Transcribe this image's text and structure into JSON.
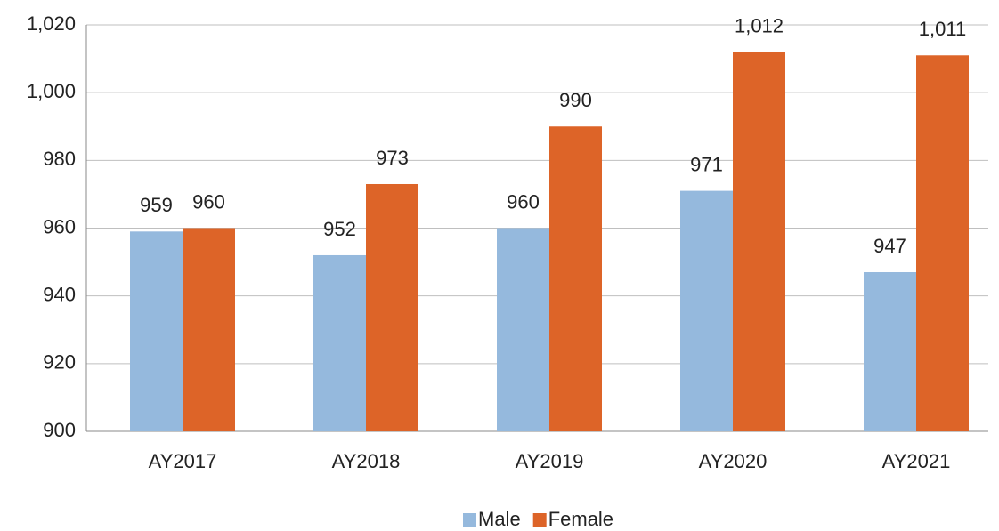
{
  "chart_data": {
    "type": "bar",
    "categories": [
      "AY2017",
      "AY2018",
      "AY2019",
      "AY2020",
      "AY2021"
    ],
    "series": [
      {
        "name": "Male",
        "color": "#95b9dd",
        "values": [
          959,
          952,
          960,
          971,
          947
        ]
      },
      {
        "name": "Female",
        "color": "#dd6428",
        "values": [
          960,
          973,
          990,
          1012,
          1011
        ],
        "value_labels": [
          "960",
          "973",
          "990",
          "1,012",
          "1,011"
        ]
      }
    ],
    "ylim": [
      900,
      1020
    ],
    "yticks": [
      900,
      920,
      940,
      960,
      980,
      {
        "value": 1000,
        "label": "1,000"
      },
      {
        "value": 1020,
        "label": "1,020"
      }
    ],
    "grid": true,
    "legend": "bottom"
  }
}
